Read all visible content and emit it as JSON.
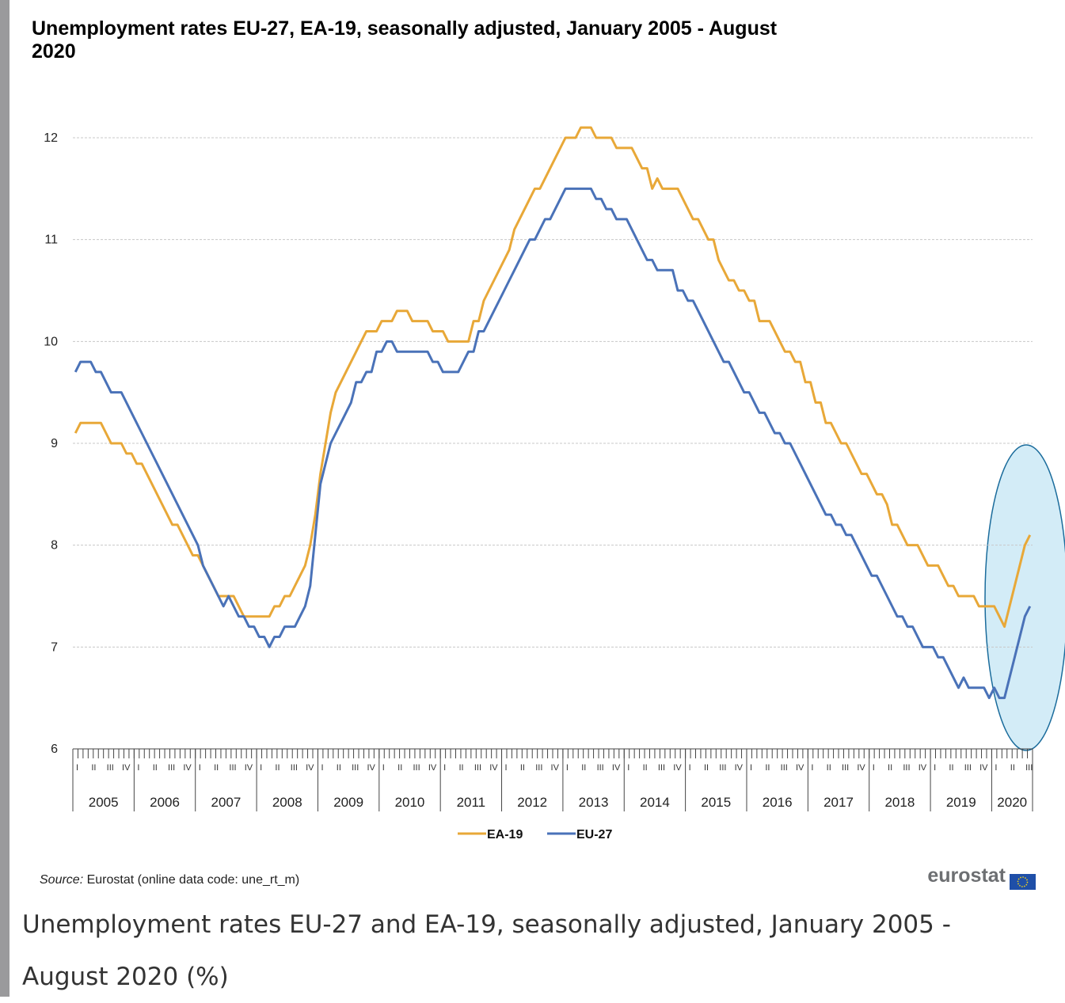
{
  "chart_data": {
    "type": "line",
    "title": "Unemployment rates EU-27, EA-19, seasonally adjusted, January 2005 - August 2020",
    "x": [
      "2005-01",
      "2005-02",
      "2005-03",
      "2005-04",
      "2005-05",
      "2005-06",
      "2005-07",
      "2005-08",
      "2005-09",
      "2005-10",
      "2005-11",
      "2005-12",
      "2006-01",
      "2006-02",
      "2006-03",
      "2006-04",
      "2006-05",
      "2006-06",
      "2006-07",
      "2006-08",
      "2006-09",
      "2006-10",
      "2006-11",
      "2006-12",
      "2007-01",
      "2007-02",
      "2007-03",
      "2007-04",
      "2007-05",
      "2007-06",
      "2007-07",
      "2007-08",
      "2007-09",
      "2007-10",
      "2007-11",
      "2007-12",
      "2008-01",
      "2008-02",
      "2008-03",
      "2008-04",
      "2008-05",
      "2008-06",
      "2008-07",
      "2008-08",
      "2008-09",
      "2008-10",
      "2008-11",
      "2008-12",
      "2009-01",
      "2009-02",
      "2009-03",
      "2009-04",
      "2009-05",
      "2009-06",
      "2009-07",
      "2009-08",
      "2009-09",
      "2009-10",
      "2009-11",
      "2009-12",
      "2010-01",
      "2010-02",
      "2010-03",
      "2010-04",
      "2010-05",
      "2010-06",
      "2010-07",
      "2010-08",
      "2010-09",
      "2010-10",
      "2010-11",
      "2010-12",
      "2011-01",
      "2011-02",
      "2011-03",
      "2011-04",
      "2011-05",
      "2011-06",
      "2011-07",
      "2011-08",
      "2011-09",
      "2011-10",
      "2011-11",
      "2011-12",
      "2012-01",
      "2012-02",
      "2012-03",
      "2012-04",
      "2012-05",
      "2012-06",
      "2012-07",
      "2012-08",
      "2012-09",
      "2012-10",
      "2012-11",
      "2012-12",
      "2013-01",
      "2013-02",
      "2013-03",
      "2013-04",
      "2013-05",
      "2013-06",
      "2013-07",
      "2013-08",
      "2013-09",
      "2013-10",
      "2013-11",
      "2013-12",
      "2014-01",
      "2014-02",
      "2014-03",
      "2014-04",
      "2014-05",
      "2014-06",
      "2014-07",
      "2014-08",
      "2014-09",
      "2014-10",
      "2014-11",
      "2014-12",
      "2015-01",
      "2015-02",
      "2015-03",
      "2015-04",
      "2015-05",
      "2015-06",
      "2015-07",
      "2015-08",
      "2015-09",
      "2015-10",
      "2015-11",
      "2015-12",
      "2016-01",
      "2016-02",
      "2016-03",
      "2016-04",
      "2016-05",
      "2016-06",
      "2016-07",
      "2016-08",
      "2016-09",
      "2016-10",
      "2016-11",
      "2016-12",
      "2017-01",
      "2017-02",
      "2017-03",
      "2017-04",
      "2017-05",
      "2017-06",
      "2017-07",
      "2017-08",
      "2017-09",
      "2017-10",
      "2017-11",
      "2017-12",
      "2018-01",
      "2018-02",
      "2018-03",
      "2018-04",
      "2018-05",
      "2018-06",
      "2018-07",
      "2018-08",
      "2018-09",
      "2018-10",
      "2018-11",
      "2018-12",
      "2019-01",
      "2019-02",
      "2019-03",
      "2019-04",
      "2019-05",
      "2019-06",
      "2019-07",
      "2019-08",
      "2019-09",
      "2019-10",
      "2019-11",
      "2019-12",
      "2020-01",
      "2020-02",
      "2020-03",
      "2020-04",
      "2020-05",
      "2020-06",
      "2020-07",
      "2020-08"
    ],
    "xticks": [
      {
        "value": "2005-01",
        "label": "2005"
      },
      {
        "value": "2006-01",
        "label": "2006"
      },
      {
        "value": "2007-01",
        "label": "2007"
      },
      {
        "value": "2008-01",
        "label": "2008"
      },
      {
        "value": "2009-01",
        "label": "2009"
      },
      {
        "value": "2010-01",
        "label": "2010"
      },
      {
        "value": "2011-01",
        "label": "2011"
      },
      {
        "value": "2012-01",
        "label": "2012"
      },
      {
        "value": "2013-01",
        "label": "2013"
      },
      {
        "value": "2014-01",
        "label": "2014"
      },
      {
        "value": "2015-01",
        "label": "2015"
      },
      {
        "value": "2016-01",
        "label": "2016"
      },
      {
        "value": "2017-01",
        "label": "2017"
      },
      {
        "value": "2018-01",
        "label": "2018"
      },
      {
        "value": "2019-01",
        "label": "2019"
      },
      {
        "value": "2020-01",
        "label": "2020"
      }
    ],
    "quarter_labels": [
      "I",
      "II",
      "III",
      "IV"
    ],
    "series": [
      {
        "name": "EA-19",
        "color": "#e8a838",
        "values": [
          9.1,
          9.2,
          9.2,
          9.2,
          9.2,
          9.2,
          9.1,
          9.0,
          9.0,
          9.0,
          8.9,
          8.9,
          8.8,
          8.8,
          8.7,
          8.6,
          8.5,
          8.4,
          8.3,
          8.2,
          8.2,
          8.1,
          8.0,
          7.9,
          7.9,
          7.8,
          7.7,
          7.6,
          7.5,
          7.5,
          7.5,
          7.5,
          7.4,
          7.3,
          7.3,
          7.3,
          7.3,
          7.3,
          7.3,
          7.4,
          7.4,
          7.5,
          7.5,
          7.6,
          7.7,
          7.8,
          8.0,
          8.3,
          8.7,
          9.0,
          9.3,
          9.5,
          9.6,
          9.7,
          9.8,
          9.9,
          10.0,
          10.1,
          10.1,
          10.1,
          10.2,
          10.2,
          10.2,
          10.3,
          10.3,
          10.3,
          10.2,
          10.2,
          10.2,
          10.2,
          10.1,
          10.1,
          10.1,
          10.0,
          10.0,
          10.0,
          10.0,
          10.0,
          10.2,
          10.2,
          10.4,
          10.5,
          10.6,
          10.7,
          10.8,
          10.9,
          11.1,
          11.2,
          11.3,
          11.4,
          11.5,
          11.5,
          11.6,
          11.7,
          11.8,
          11.9,
          12.0,
          12.0,
          12.0,
          12.1,
          12.1,
          12.1,
          12.0,
          12.0,
          12.0,
          12.0,
          11.9,
          11.9,
          11.9,
          11.9,
          11.8,
          11.7,
          11.7,
          11.5,
          11.6,
          11.5,
          11.5,
          11.5,
          11.5,
          11.4,
          11.3,
          11.2,
          11.2,
          11.1,
          11.0,
          11.0,
          10.8,
          10.7,
          10.6,
          10.6,
          10.5,
          10.5,
          10.4,
          10.4,
          10.2,
          10.2,
          10.2,
          10.1,
          10.0,
          9.9,
          9.9,
          9.8,
          9.8,
          9.6,
          9.6,
          9.4,
          9.4,
          9.2,
          9.2,
          9.1,
          9.0,
          9.0,
          8.9,
          8.8,
          8.7,
          8.7,
          8.6,
          8.5,
          8.5,
          8.4,
          8.2,
          8.2,
          8.1,
          8.0,
          8.0,
          8.0,
          7.9,
          7.8,
          7.8,
          7.8,
          7.7,
          7.6,
          7.6,
          7.5,
          7.5,
          7.5,
          7.5,
          7.4,
          7.4,
          7.4,
          7.4,
          7.3,
          7.2,
          7.4,
          7.6,
          7.8,
          8.0,
          8.1
        ]
      },
      {
        "name": "EU-27",
        "color": "#4a72b8",
        "values": [
          9.7,
          9.8,
          9.8,
          9.8,
          9.7,
          9.7,
          9.6,
          9.5,
          9.5,
          9.5,
          9.4,
          9.3,
          9.2,
          9.1,
          9.0,
          8.9,
          8.8,
          8.7,
          8.6,
          8.5,
          8.4,
          8.3,
          8.2,
          8.1,
          8.0,
          7.8,
          7.7,
          7.6,
          7.5,
          7.4,
          7.5,
          7.4,
          7.3,
          7.3,
          7.2,
          7.2,
          7.1,
          7.1,
          7.0,
          7.1,
          7.1,
          7.2,
          7.2,
          7.2,
          7.3,
          7.4,
          7.6,
          8.1,
          8.6,
          8.8,
          9.0,
          9.1,
          9.2,
          9.3,
          9.4,
          9.6,
          9.6,
          9.7,
          9.7,
          9.9,
          9.9,
          10.0,
          10.0,
          9.9,
          9.9,
          9.9,
          9.9,
          9.9,
          9.9,
          9.9,
          9.8,
          9.8,
          9.7,
          9.7,
          9.7,
          9.7,
          9.8,
          9.9,
          9.9,
          10.1,
          10.1,
          10.2,
          10.3,
          10.4,
          10.5,
          10.6,
          10.7,
          10.8,
          10.9,
          11.0,
          11.0,
          11.1,
          11.2,
          11.2,
          11.3,
          11.4,
          11.5,
          11.5,
          11.5,
          11.5,
          11.5,
          11.5,
          11.4,
          11.4,
          11.3,
          11.3,
          11.2,
          11.2,
          11.2,
          11.1,
          11.0,
          10.9,
          10.8,
          10.8,
          10.7,
          10.7,
          10.7,
          10.7,
          10.5,
          10.5,
          10.4,
          10.4,
          10.3,
          10.2,
          10.1,
          10.0,
          9.9,
          9.8,
          9.8,
          9.7,
          9.6,
          9.5,
          9.5,
          9.4,
          9.3,
          9.3,
          9.2,
          9.1,
          9.1,
          9.0,
          9.0,
          8.9,
          8.8,
          8.7,
          8.6,
          8.5,
          8.4,
          8.3,
          8.3,
          8.2,
          8.2,
          8.1,
          8.1,
          8.0,
          7.9,
          7.8,
          7.7,
          7.7,
          7.6,
          7.5,
          7.4,
          7.3,
          7.3,
          7.2,
          7.2,
          7.1,
          7.0,
          7.0,
          7.0,
          6.9,
          6.9,
          6.8,
          6.7,
          6.6,
          6.7,
          6.6,
          6.6,
          6.6,
          6.6,
          6.5,
          6.6,
          6.5,
          6.5,
          6.7,
          6.9,
          7.1,
          7.3,
          7.4
        ]
      }
    ],
    "ylim": [
      6,
      12
    ],
    "yticks": [
      6,
      7,
      8,
      9,
      10,
      11,
      12
    ],
    "grid": true,
    "legend": "bottom",
    "source_label": "Source:",
    "source": "Eurostat (online data code: une_rt_m)",
    "logo": "eurostat",
    "caption": "Unemployment rates EU-27 and EA-19, seasonally adjusted, January 2005 - August 2020 (%)"
  }
}
